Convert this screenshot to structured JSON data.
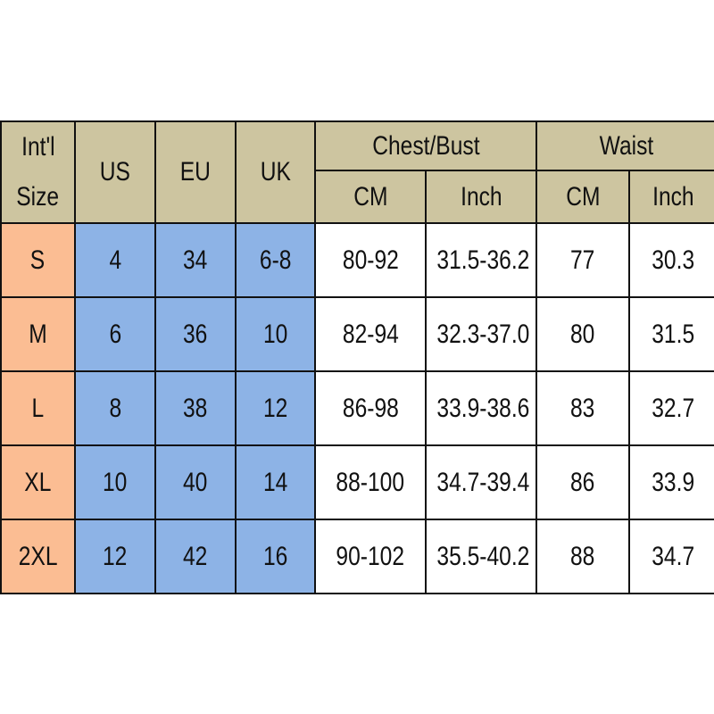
{
  "header": {
    "intl_size": [
      "Int'l",
      "Size"
    ],
    "us": "US",
    "eu": "EU",
    "uk": "UK",
    "chest": "Chest/Bust",
    "waist": "Waist",
    "cm": "CM",
    "inch": "Inch"
  },
  "colors": {
    "header": "#cdc5a0",
    "size_column": "#fbbd93",
    "region_columns": "#8db3e6"
  },
  "rows": [
    {
      "size": "S",
      "us": "4",
      "eu": "34",
      "uk": "6-8",
      "chest_cm": "80-92",
      "chest_in": "31.5-36.2",
      "waist_cm": "77",
      "waist_in": "30.3"
    },
    {
      "size": "M",
      "us": "6",
      "eu": "36",
      "uk": "10",
      "chest_cm": "82-94",
      "chest_in": "32.3-37.0",
      "waist_cm": "80",
      "waist_in": "31.5"
    },
    {
      "size": "L",
      "us": "8",
      "eu": "38",
      "uk": "12",
      "chest_cm": "86-98",
      "chest_in": "33.9-38.6",
      "waist_cm": "83",
      "waist_in": "32.7"
    },
    {
      "size": "XL",
      "us": "10",
      "eu": "40",
      "uk": "14",
      "chest_cm": "88-100",
      "chest_in": "34.7-39.4",
      "waist_cm": "86",
      "waist_in": "33.9"
    },
    {
      "size": "2XL",
      "us": "12",
      "eu": "42",
      "uk": "16",
      "chest_cm": "90-102",
      "chest_in": "35.5-40.2",
      "waist_cm": "88",
      "waist_in": "34.7"
    }
  ]
}
